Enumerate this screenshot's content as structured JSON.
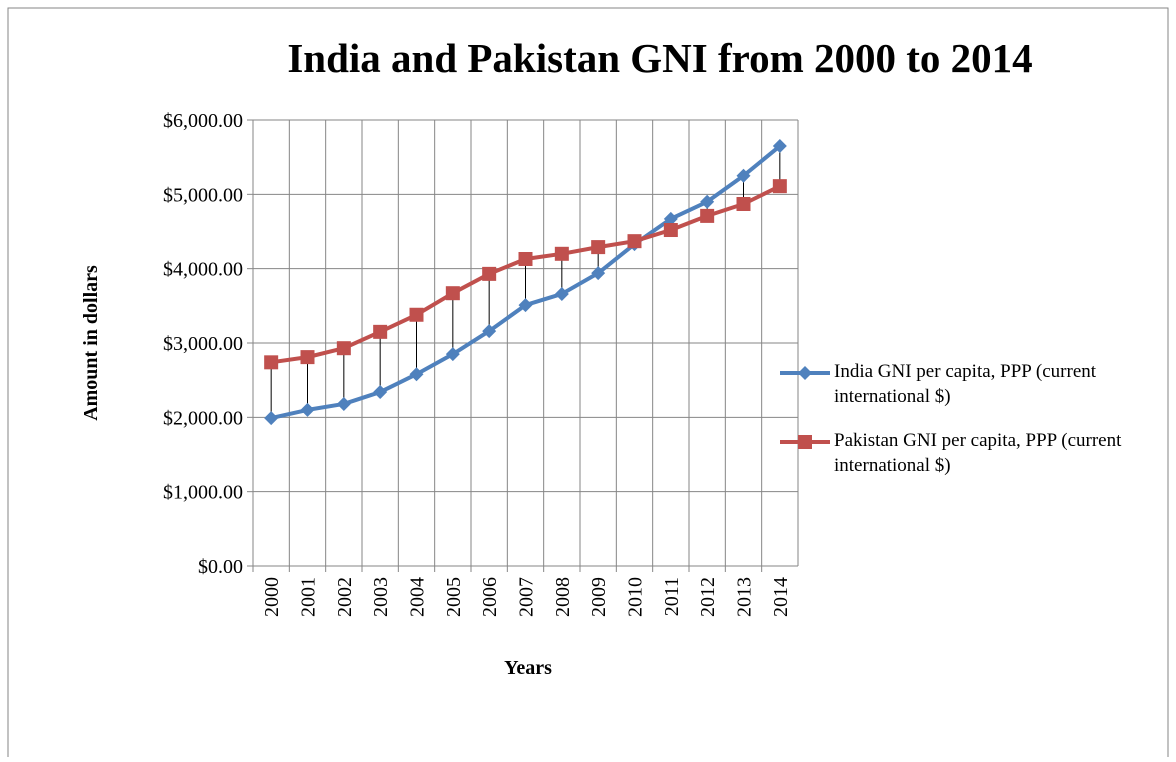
{
  "chart_data": {
    "type": "line",
    "title": "India and Pakistan GNI from 2000 to 2014",
    "x_label": "Years",
    "y_label": "Amount in dollars",
    "categories": [
      "2000",
      "2001",
      "2002",
      "2003",
      "2004",
      "2005",
      "2006",
      "2007",
      "2008",
      "2009",
      "2010",
      "2011",
      "2012",
      "2013",
      "2014"
    ],
    "series": [
      {
        "name": "India GNI per capita, PPP (current international $)",
        "color": "#4f81bd",
        "marker": "diamond",
        "values": [
          1990,
          2100,
          2180,
          2340,
          2580,
          2850,
          3160,
          3510,
          3660,
          3940,
          4330,
          4670,
          4900,
          5250,
          5650
        ]
      },
      {
        "name": "Pakistan GNI per capita, PPP (current international $)",
        "color": "#c0504d",
        "marker": "square",
        "values": [
          2740,
          2810,
          2930,
          3150,
          3380,
          3670,
          3930,
          4130,
          4200,
          4290,
          4370,
          4520,
          4710,
          4870,
          5110
        ]
      }
    ],
    "ylim": [
      0,
      6000
    ],
    "yticks": [
      {
        "value": 0,
        "label": "$0.00"
      },
      {
        "value": 1000,
        "label": "$1,000.00"
      },
      {
        "value": 2000,
        "label": "$2,000.00"
      },
      {
        "value": 3000,
        "label": "$3,000.00"
      },
      {
        "value": 4000,
        "label": "$4,000.00"
      },
      {
        "value": 5000,
        "label": "$5,000.00"
      },
      {
        "value": 6000,
        "label": "$6,000.00"
      }
    ],
    "grid": true,
    "high_low_lines": true,
    "legend": "right"
  }
}
